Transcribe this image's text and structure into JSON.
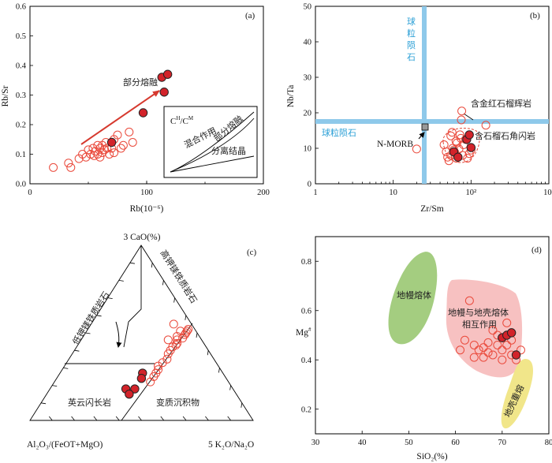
{
  "chart_data": [
    {
      "panel": "(a)",
      "type": "scatter",
      "xlabel": "Rb(10⁻⁶)",
      "ylabel": "Rb/Sr",
      "xlim": [
        0,
        200
      ],
      "ylim": [
        0,
        0.6
      ],
      "xticks": [
        0,
        100,
        200
      ],
      "yticks": [
        0.0,
        0.1,
        0.2,
        0.3,
        0.4,
        0.5,
        0.6
      ],
      "series": [
        {
          "style": "open",
          "points": [
            [
              20,
              0.055
            ],
            [
              33,
              0.07
            ],
            [
              35,
              0.055
            ],
            [
              42,
              0.085
            ],
            [
              45,
              0.1
            ],
            [
              48,
              0.09
            ],
            [
              50,
              0.115
            ],
            [
              52,
              0.1
            ],
            [
              54,
              0.12
            ],
            [
              55,
              0.095
            ],
            [
              56,
              0.11
            ],
            [
              58,
              0.13
            ],
            [
              58,
              0.1
            ],
            [
              60,
              0.09
            ],
            [
              60,
              0.12
            ],
            [
              62,
              0.13
            ],
            [
              62,
              0.105
            ],
            [
              64,
              0.115
            ],
            [
              65,
              0.14
            ],
            [
              66,
              0.12
            ],
            [
              68,
              0.1
            ],
            [
              70,
              0.12
            ],
            [
              72,
              0.15
            ],
            [
              72,
              0.105
            ],
            [
              75,
              0.165
            ],
            [
              78,
              0.12
            ],
            [
              80,
              0.13
            ],
            [
              85,
              0.175
            ],
            [
              88,
              0.14
            ]
          ]
        },
        {
          "style": "filled",
          "points": [
            [
              70,
              0.14
            ],
            [
              97,
              0.24
            ],
            [
              113,
              0.36
            ],
            [
              118,
              0.37
            ],
            [
              115,
              0.31
            ]
          ]
        }
      ],
      "annotations": [
        "部分熔融"
      ],
      "inset": {
        "title_main": "C",
        "title_sup1": "H",
        "title_mid": "/C",
        "title_sup2": "M",
        "labels": [
          "混合作用",
          "部分熔融",
          "分离结晶"
        ]
      }
    },
    {
      "panel": "(b)",
      "type": "scatter",
      "xlabel": "Zr/Sm",
      "ylabel": "Nb/Ta",
      "xscale": "log",
      "xlim": [
        1,
        1000
      ],
      "ylim": [
        0,
        50
      ],
      "xticks": [
        "1",
        "10",
        "10²",
        "10³"
      ],
      "yticks": [
        0,
        10,
        20,
        30,
        40,
        50
      ],
      "reference": {
        "chondrite_zr_sm": 25,
        "chondrite_nb_ta": 17.5,
        "label_v": "球粒陨石",
        "label_h": "球粒陨石",
        "nmorb": [
          26,
          14.8
        ],
        "nmorb_label": "N-MORB"
      },
      "series": [
        {
          "style": "open",
          "points": [
            [
              20,
              9.8
            ],
            [
              45,
              11
            ],
            [
              48,
              9
            ],
            [
              50,
              7.5
            ],
            [
              52,
              6.5
            ],
            [
              55,
              8
            ],
            [
              55,
              13.5
            ],
            [
              57,
              14.5
            ],
            [
              58,
              10
            ],
            [
              60,
              9.5
            ],
            [
              62,
              8.8
            ],
            [
              64,
              12
            ],
            [
              65,
              7.2
            ],
            [
              66,
              11.5
            ],
            [
              70,
              9.8
            ],
            [
              72,
              13.8
            ],
            [
              74,
              12.8
            ],
            [
              75,
              18
            ],
            [
              76,
              20.5
            ],
            [
              78,
              8
            ],
            [
              80,
              11
            ],
            [
              85,
              12.5
            ],
            [
              90,
              7.2
            ],
            [
              95,
              8.5
            ],
            [
              100,
              9.5
            ],
            [
              155,
              16.5
            ]
          ]
        },
        {
          "style": "filled",
          "points": [
            [
              60,
              9
            ],
            [
              68,
              7.5
            ],
            [
              88,
              12.5
            ],
            [
              95,
              13.8
            ],
            [
              100,
              10.2
            ]
          ]
        }
      ],
      "annotations": [
        "含金红石榴辉岩",
        "含石榴石角闪岩"
      ]
    },
    {
      "panel": "(c)",
      "type": "scatter",
      "ternary": true,
      "apex_top": "3 CaO(%)",
      "apex_left": "Al₂O₃/(FeOT+MgO)",
      "apex_right": "5 K₂O/Na₂O",
      "field_labels": [
        "低钾镁铁质岩石",
        "高钾镁铁质岩石",
        "英云闪长岩",
        "变质沉积物"
      ],
      "series": [
        {
          "style": "open",
          "points": [
            [
              0.51,
              0.04,
              0.45
            ],
            [
              0.5,
              0.05,
              0.45
            ],
            [
              0.52,
              0.03,
              0.45
            ],
            [
              0.49,
              0.06,
              0.45
            ],
            [
              0.47,
              0.08,
              0.45
            ],
            [
              0.51,
              0.07,
              0.42
            ],
            [
              0.48,
              0.1,
              0.42
            ],
            [
              0.46,
              0.11,
              0.43
            ],
            [
              0.44,
              0.12,
              0.44
            ],
            [
              0.43,
              0.13,
              0.44
            ],
            [
              0.42,
              0.15,
              0.43
            ],
            [
              0.4,
              0.17,
              0.43
            ],
            [
              0.38,
              0.19,
              0.43
            ],
            [
              0.35,
              0.21,
              0.44
            ],
            [
              0.33,
              0.24,
              0.43
            ],
            [
              0.31,
              0.27,
              0.42
            ],
            [
              0.29,
              0.28,
              0.43
            ],
            [
              0.27,
              0.3,
              0.43
            ],
            [
              0.25,
              0.32,
              0.43
            ],
            [
              0.22,
              0.35,
              0.43
            ],
            [
              0.55,
              0.08,
              0.37
            ],
            [
              0.46,
              0.15,
              0.39
            ]
          ]
        },
        {
          "style": "filled",
          "points": [
            [
              0.27,
              0.36,
              0.37
            ],
            [
              0.24,
              0.38,
              0.38
            ],
            [
              0.18,
              0.44,
              0.38
            ],
            [
              0.18,
              0.48,
              0.34
            ],
            [
              0.15,
              0.48,
              0.37
            ]
          ]
        }
      ]
    },
    {
      "panel": "(d)",
      "type": "scatter",
      "xlabel": "SiO₂(%)",
      "ylabel": "Mg#",
      "xlim": [
        30,
        80
      ],
      "ylim": [
        0.1,
        0.9
      ],
      "xticks": [
        30,
        40,
        50,
        60,
        70,
        80
      ],
      "yticks": [
        0.2,
        0.4,
        0.6,
        0.8
      ],
      "field_labels": [
        "地幔熔体",
        "地幔与地壳熔体相互作用",
        "地壳重熔"
      ],
      "series": [
        {
          "style": "open",
          "points": [
            [
              63,
              0.64
            ],
            [
              62,
              0.48
            ],
            [
              64,
              0.46
            ],
            [
              65,
              0.44
            ],
            [
              66,
              0.45
            ],
            [
              67,
              0.43
            ],
            [
              67,
              0.47
            ],
            [
              68,
              0.52
            ],
            [
              68,
              0.42
            ],
            [
              69,
              0.46
            ],
            [
              69,
              0.5
            ],
            [
              70,
              0.44
            ],
            [
              70,
              0.4
            ],
            [
              71,
              0.46
            ],
            [
              71,
              0.55
            ],
            [
              72,
              0.42
            ],
            [
              72,
              0.48
            ],
            [
              73,
              0.4
            ],
            [
              74,
              0.44
            ],
            [
              66,
              0.41
            ],
            [
              64,
              0.41
            ],
            [
              61,
              0.44
            ]
          ]
        },
        {
          "style": "filled",
          "points": [
            [
              70,
              0.49
            ],
            [
              71,
              0.5
            ],
            [
              72,
              0.51
            ],
            [
              73,
              0.42
            ]
          ]
        }
      ]
    }
  ],
  "labels": {
    "tag_a": "(a)",
    "tag_b": "(b)",
    "tag_c": "(c)",
    "tag_d": "(d)",
    "a_ylabel": "Rb/Sr",
    "a_xlabel": "Rb(10⁻⁶)",
    "a_arrow": "部分熔融",
    "a_inset_mix": "混合作用",
    "a_inset_melt": "部分熔融",
    "a_inset_frac": "分离结晶",
    "b_ylabel": "Nb/Ta",
    "b_xlabel": "Zr/Sm",
    "b_chondrite_h": "球粒陨石",
    "b_nmorb": "N-MORB",
    "b_eclogite": "含金红石榴辉岩",
    "b_amphibolite": "含石榴石角闪岩",
    "c_top": "3 CaO(%)",
    "c_left": "Al₂O₃/(FeOT+MgO)",
    "c_right": "5 K₂O/Na₂O",
    "c_tonalite": "英云闪长岩",
    "c_metased": "变质沉积物",
    "d_ylabel": "Mg#",
    "d_xlabel": "SiO₂(%)",
    "d_mantle": "地幔熔体",
    "d_interact1": "地幔与地壳熔体",
    "d_interact2": "相互作用",
    "d_crust": "地壳重熔"
  },
  "colors": {
    "open_marker": "#ea4a3c",
    "filled_marker": "#d2232a",
    "arrow": "#d63a2f",
    "chondrite_line": "#8ec9ea",
    "mantle_field": "#94c46a",
    "interaction_field": "#f4a6a6",
    "crust_field": "#f1e68a"
  }
}
